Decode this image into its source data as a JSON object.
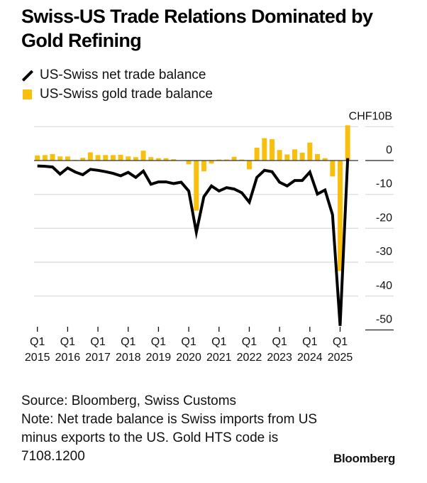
{
  "chart_data": {
    "type": "bar+line",
    "title": "Swiss-US Trade Relations Dominated by Gold Refining",
    "unit_label": "CHF10B",
    "legend": [
      {
        "name": "US-Swiss net trade balance",
        "kind": "line",
        "color": "#000000"
      },
      {
        "name": "US-Swiss gold trade balance",
        "kind": "bar",
        "color": "#F8BF0D"
      }
    ],
    "legend_placement": "top-left",
    "ylim": [
      -50,
      10
    ],
    "yticks": [
      10,
      0,
      -10,
      -20,
      -30,
      -40,
      -50
    ],
    "ytick_labels": [
      "CHF10B",
      "0",
      "-10",
      "-20",
      "-30",
      "-40",
      "-50"
    ],
    "xlabels": [
      {
        "q": "Q1",
        "year": "2015",
        "index": 0
      },
      {
        "q": "Q1",
        "year": "2016",
        "index": 4
      },
      {
        "q": "Q1",
        "year": "2017",
        "index": 8
      },
      {
        "q": "Q1",
        "year": "2018",
        "index": 12
      },
      {
        "q": "Q1",
        "year": "2019",
        "index": 16
      },
      {
        "q": "Q1",
        "year": "2020",
        "index": 20
      },
      {
        "q": "Q1",
        "year": "2021",
        "index": 24
      },
      {
        "q": "Q1",
        "year": "2022",
        "index": 28
      },
      {
        "q": "Q1",
        "year": "2023",
        "index": 32
      },
      {
        "q": "Q1",
        "year": "2024",
        "index": 36
      },
      {
        "q": "Q1",
        "year": "2025",
        "index": 40
      }
    ],
    "x": [
      "2015Q1",
      "2015Q2",
      "2015Q3",
      "2015Q4",
      "2016Q1",
      "2016Q2",
      "2016Q3",
      "2016Q4",
      "2017Q1",
      "2017Q2",
      "2017Q3",
      "2017Q4",
      "2018Q1",
      "2018Q2",
      "2018Q3",
      "2018Q4",
      "2019Q1",
      "2019Q2",
      "2019Q3",
      "2019Q4",
      "2020Q1",
      "2020Q2",
      "2020Q3",
      "2020Q4",
      "2021Q1",
      "2021Q2",
      "2021Q3",
      "2021Q4",
      "2022Q1",
      "2022Q2",
      "2022Q3",
      "2022Q4",
      "2023Q1",
      "2023Q2",
      "2023Q3",
      "2023Q4",
      "2024Q1",
      "2024Q2",
      "2024Q3",
      "2024Q4",
      "2025Q1",
      "2025Q2"
    ],
    "series": [
      {
        "name": "US-Swiss gold trade balance",
        "type": "bar",
        "values": [
          1.5,
          1.6,
          1.9,
          1.2,
          1.2,
          0.2,
          0.8,
          2.4,
          1.6,
          1.6,
          1.6,
          1.7,
          1.2,
          1.0,
          2.9,
          1.0,
          0.7,
          0.7,
          0.4,
          0.1,
          -1.1,
          -14.8,
          -3.2,
          -0.9,
          0.3,
          0.3,
          1.1,
          0.3,
          -2.6,
          3.8,
          6.6,
          6.3,
          3.1,
          1.8,
          3.3,
          2.3,
          5.3,
          1.9,
          0.7,
          -4.7,
          -32.6,
          10.4
        ]
      },
      {
        "name": "US-Swiss net trade balance",
        "type": "line",
        "values": [
          -1.6,
          -1.7,
          -1.9,
          -4.0,
          -2.2,
          -3.4,
          -4.2,
          -2.6,
          -2.9,
          -3.3,
          -3.8,
          -4.5,
          -3.5,
          -5.0,
          -3.1,
          -7.0,
          -6.3,
          -6.3,
          -6.8,
          -6.4,
          -9.0,
          -21.2,
          -10.7,
          -7.5,
          -9.0,
          -8.0,
          -8.4,
          -9.5,
          -12.3,
          -5.0,
          -2.9,
          -3.3,
          -6.4,
          -7.5,
          -5.9,
          -5.9,
          -3.4,
          -9.9,
          -8.7,
          -16.0,
          -48.8,
          0.7
        ]
      }
    ],
    "grid": true,
    "colors": {
      "gold": "#F8BF0D",
      "line": "#000000",
      "grid": "#D9D9D9",
      "zero": "#333333"
    }
  },
  "header": {
    "title": "Swiss-US Trade Relations Dominated by Gold Refining"
  },
  "legend": {
    "line_label": "US-Swiss net trade balance",
    "bar_label": "US-Swiss gold trade balance"
  },
  "footer": {
    "source": "Source: Bloomberg, Swiss Customs",
    "note": "Note: Net trade balance is Swiss imports from US minus exports to the US. Gold HTS code is 7108.1200",
    "brand": "Bloomberg"
  }
}
